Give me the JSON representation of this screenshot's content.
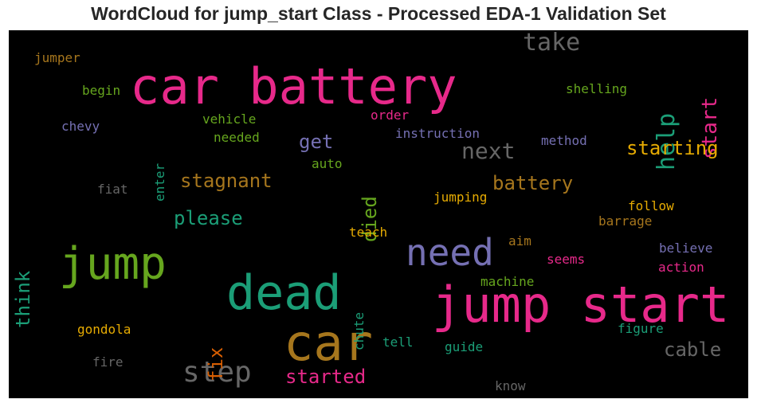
{
  "title": "WordCloud for jump_start Class - Processed EDA-1 Validation Set",
  "colors": {
    "background": "#000000",
    "pink": "#e7298a",
    "green": "#66a61e",
    "teal": "#1b9e77",
    "orange": "#d95f02",
    "purple": "#7570b3",
    "gold": "#e6ab02",
    "brown": "#a6761d",
    "gray": "#666666"
  },
  "words": [
    {
      "text": "car battery",
      "color": "#e7298a",
      "size": 62,
      "orientation": "horizontal"
    },
    {
      "text": "jump start",
      "color": "#e7298a",
      "size": 62,
      "orientation": "horizontal"
    },
    {
      "text": "car",
      "color": "#a6761d",
      "size": 62,
      "orientation": "horizontal"
    },
    {
      "text": "dead",
      "color": "#1b9e77",
      "size": 60,
      "orientation": "horizontal"
    },
    {
      "text": "jump",
      "color": "#66a61e",
      "size": 56,
      "orientation": "horizontal"
    },
    {
      "text": "need",
      "color": "#7570b3",
      "size": 46,
      "orientation": "horizontal"
    },
    {
      "text": "step",
      "color": "#666666",
      "size": 36,
      "orientation": "horizontal"
    },
    {
      "text": "take",
      "color": "#666666",
      "size": 30,
      "orientation": "horizontal"
    },
    {
      "text": "help",
      "color": "#1b9e77",
      "size": 30,
      "orientation": "vertical"
    },
    {
      "text": "start",
      "color": "#e7298a",
      "size": 26,
      "orientation": "vertical"
    },
    {
      "text": "next",
      "color": "#666666",
      "size": 28,
      "orientation": "horizontal"
    },
    {
      "text": "starting",
      "color": "#e6ab02",
      "size": 24,
      "orientation": "horizontal"
    },
    {
      "text": "battery",
      "color": "#a6761d",
      "size": 24,
      "orientation": "horizontal"
    },
    {
      "text": "stagnant",
      "color": "#a6761d",
      "size": 24,
      "orientation": "horizontal"
    },
    {
      "text": "please",
      "color": "#1b9e77",
      "size": 24,
      "orientation": "horizontal"
    },
    {
      "text": "think",
      "color": "#1b9e77",
      "size": 24,
      "orientation": "vertical"
    },
    {
      "text": "died",
      "color": "#66a61e",
      "size": 24,
      "orientation": "vertical"
    },
    {
      "text": "get",
      "color": "#7570b3",
      "size": 24,
      "orientation": "horizontal"
    },
    {
      "text": "started",
      "color": "#e7298a",
      "size": 24,
      "orientation": "horizontal"
    },
    {
      "text": "cable",
      "color": "#666666",
      "size": 24,
      "orientation": "horizontal"
    },
    {
      "text": "fix",
      "color": "#d95f02",
      "size": 24,
      "orientation": "vertical"
    },
    {
      "text": "jumper",
      "color": "#a6761d",
      "size": 16,
      "orientation": "horizontal"
    },
    {
      "text": "begin",
      "color": "#66a61e",
      "size": 16,
      "orientation": "horizontal"
    },
    {
      "text": "chevy",
      "color": "#7570b3",
      "size": 16,
      "orientation": "horizontal"
    },
    {
      "text": "vehicle",
      "color": "#66a61e",
      "size": 16,
      "orientation": "horizontal"
    },
    {
      "text": "needed",
      "color": "#66a61e",
      "size": 16,
      "orientation": "horizontal"
    },
    {
      "text": "enter",
      "color": "#1b9e77",
      "size": 16,
      "orientation": "vertical"
    },
    {
      "text": "auto",
      "color": "#66a61e",
      "size": 16,
      "orientation": "horizontal"
    },
    {
      "text": "order",
      "color": "#e7298a",
      "size": 16,
      "orientation": "horizontal"
    },
    {
      "text": "instruction",
      "color": "#7570b3",
      "size": 16,
      "orientation": "horizontal"
    },
    {
      "text": "method",
      "color": "#7570b3",
      "size": 16,
      "orientation": "horizontal"
    },
    {
      "text": "shelling",
      "color": "#66a61e",
      "size": 16,
      "orientation": "horizontal"
    },
    {
      "text": "fiat",
      "color": "#666666",
      "size": 16,
      "orientation": "horizontal"
    },
    {
      "text": "jumping",
      "color": "#e6ab02",
      "size": 16,
      "orientation": "horizontal"
    },
    {
      "text": "follow",
      "color": "#e6ab02",
      "size": 16,
      "orientation": "horizontal"
    },
    {
      "text": "barrage",
      "color": "#a6761d",
      "size": 16,
      "orientation": "horizontal"
    },
    {
      "text": "teach",
      "color": "#e6ab02",
      "size": 16,
      "orientation": "horizontal"
    },
    {
      "text": "aim",
      "color": "#a6761d",
      "size": 16,
      "orientation": "horizontal"
    },
    {
      "text": "believe",
      "color": "#7570b3",
      "size": 16,
      "orientation": "horizontal"
    },
    {
      "text": "seems",
      "color": "#e7298a",
      "size": 16,
      "orientation": "horizontal"
    },
    {
      "text": "action",
      "color": "#e7298a",
      "size": 16,
      "orientation": "horizontal"
    },
    {
      "text": "machine",
      "color": "#66a61e",
      "size": 16,
      "orientation": "horizontal"
    },
    {
      "text": "chute",
      "color": "#1b9e77",
      "size": 16,
      "orientation": "vertical"
    },
    {
      "text": "gondola",
      "color": "#e6ab02",
      "size": 16,
      "orientation": "horizontal"
    },
    {
      "text": "tell",
      "color": "#1b9e77",
      "size": 16,
      "orientation": "horizontal"
    },
    {
      "text": "guide",
      "color": "#1b9e77",
      "size": 16,
      "orientation": "horizontal"
    },
    {
      "text": "figure",
      "color": "#1b9e77",
      "size": 16,
      "orientation": "horizontal"
    },
    {
      "text": "fire",
      "color": "#666666",
      "size": 16,
      "orientation": "horizontal"
    },
    {
      "text": "know",
      "color": "#666666",
      "size": 16,
      "orientation": "horizontal"
    }
  ]
}
